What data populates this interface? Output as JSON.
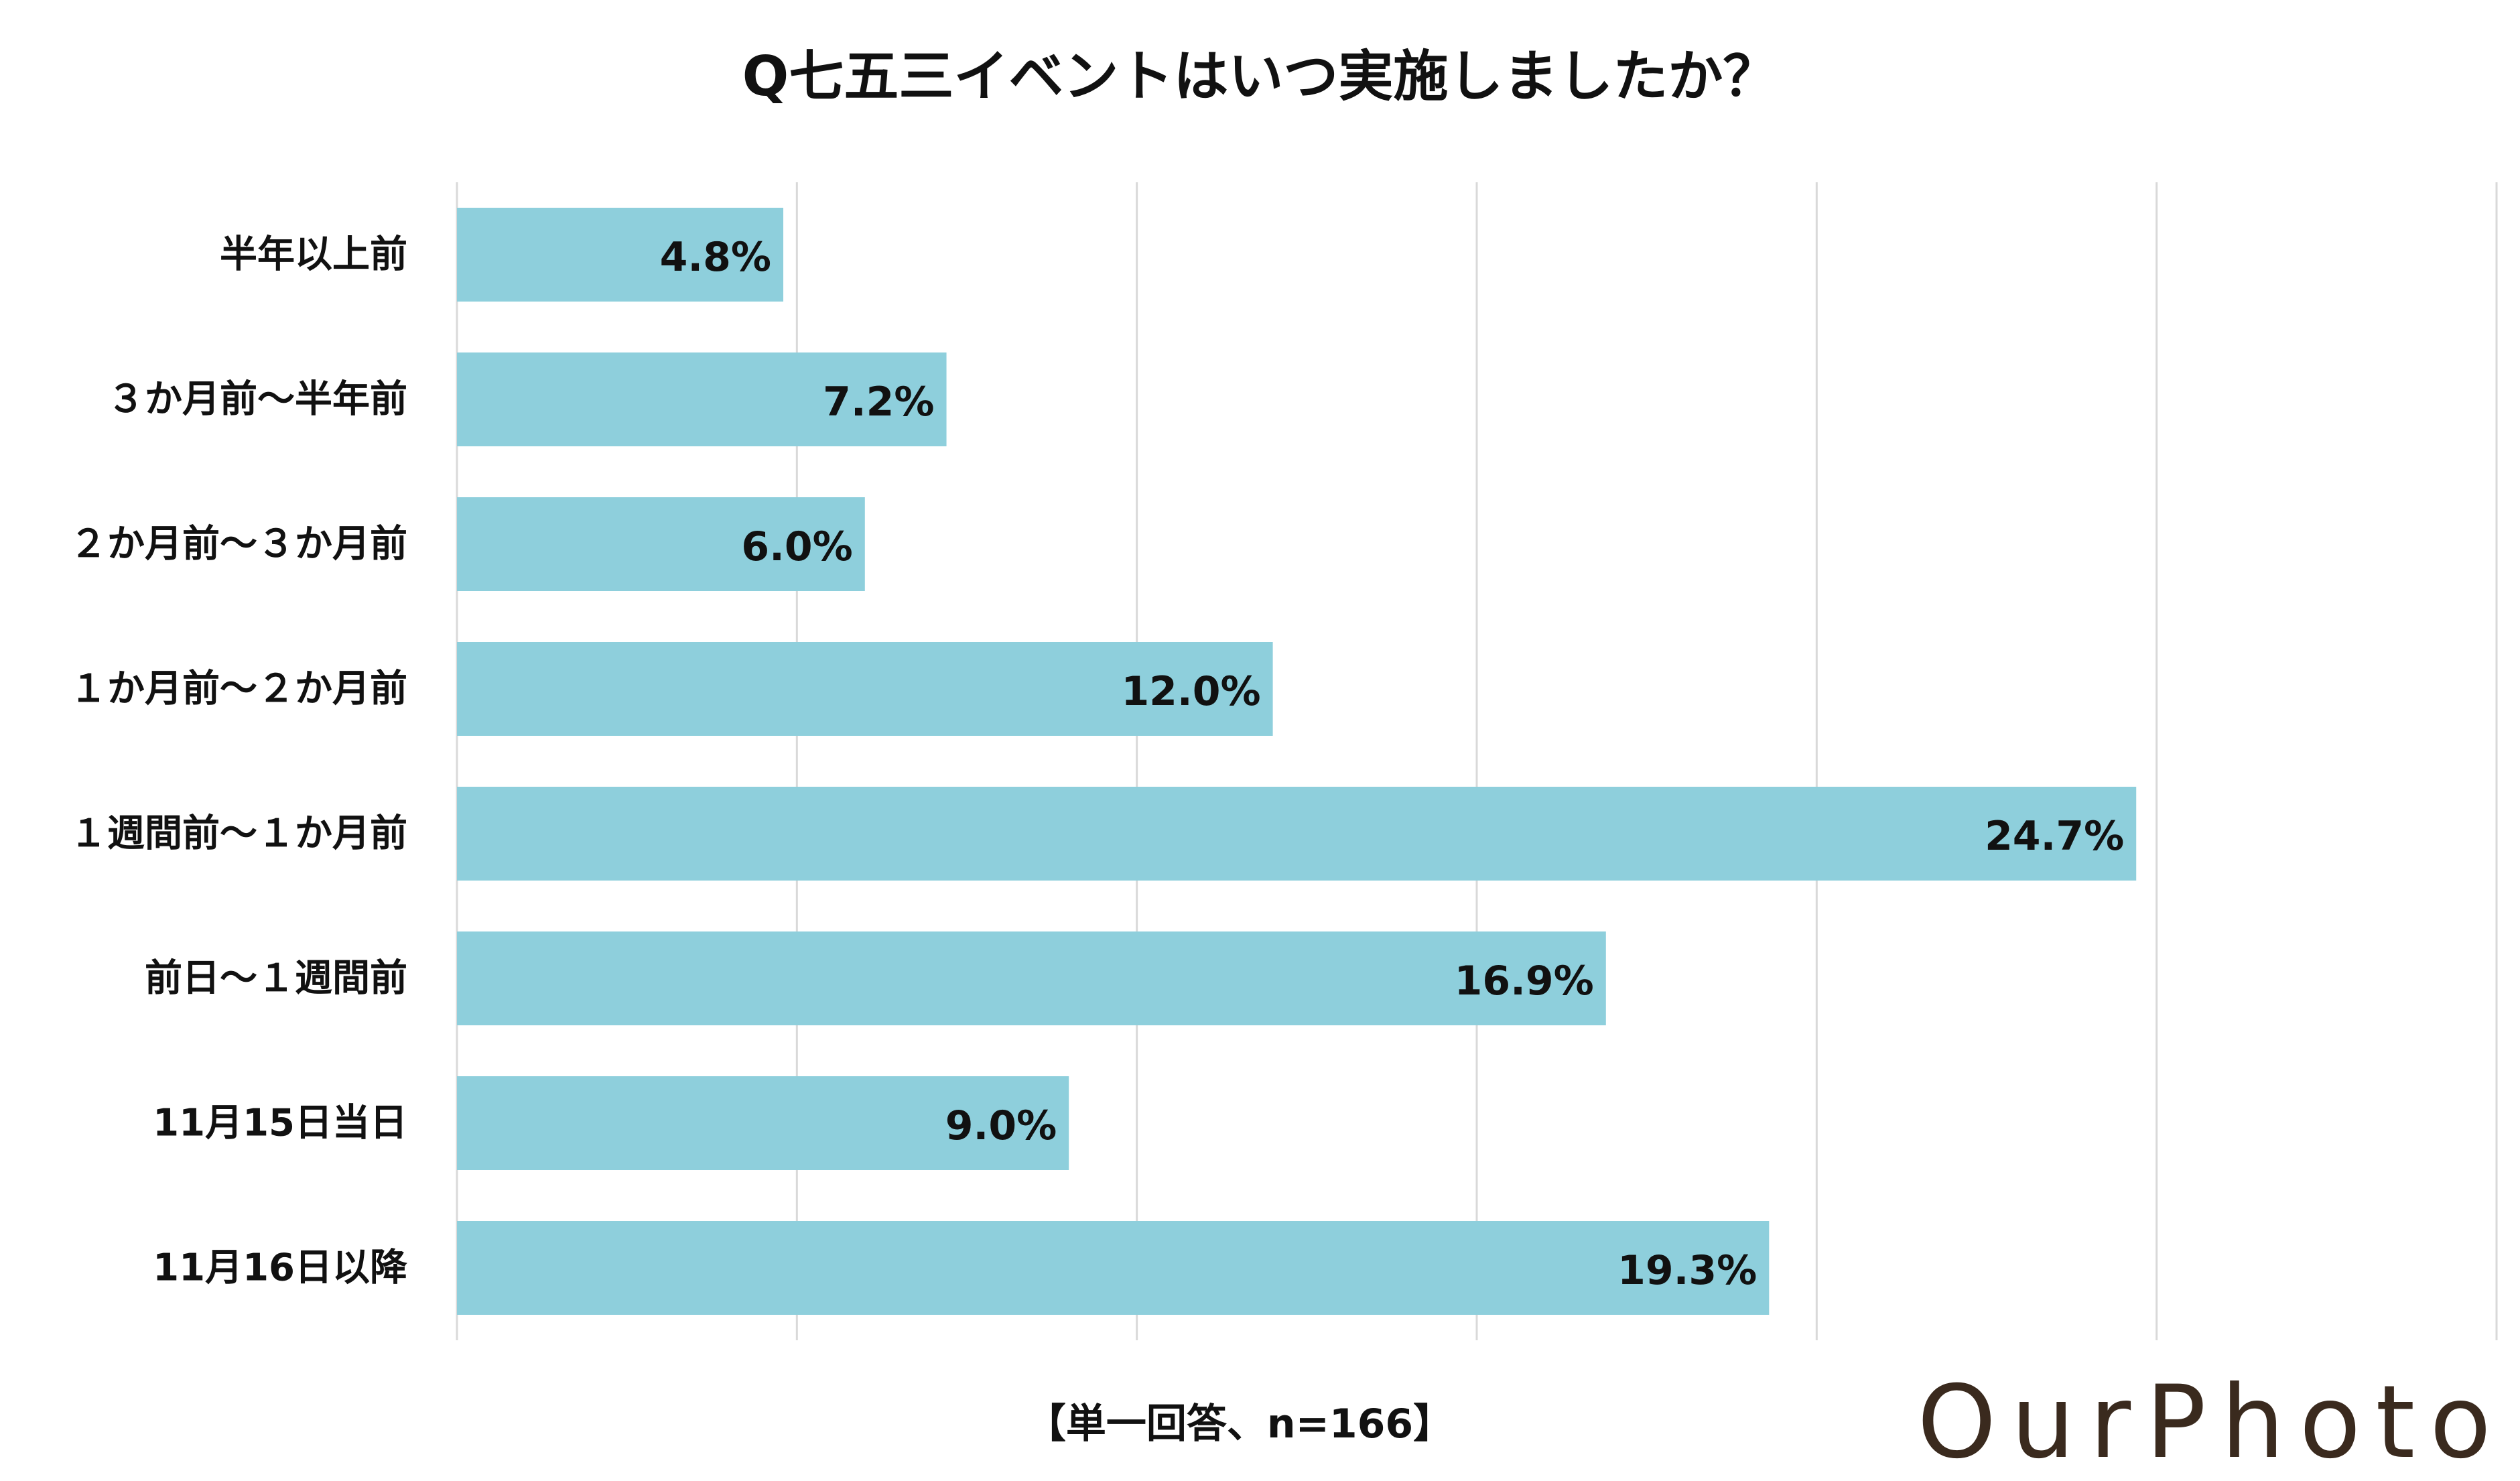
{
  "chart_data": {
    "type": "bar",
    "orientation": "horizontal",
    "title": "Q七五三イベントはいつ実施しましたか？",
    "categories": [
      "半年以上前",
      "３か月前～半年前",
      "２か月前～３か月前",
      "１か月前～２か月前",
      "１週間前～１か月前",
      "前日～１週間前",
      "11月15日当日",
      "11月16日以降"
    ],
    "values": [
      4.8,
      7.2,
      6.0,
      12.0,
      24.7,
      16.9,
      9.0,
      19.3
    ],
    "value_labels": [
      "4.8%",
      "7.2%",
      "6.0%",
      "12.0%",
      "24.7%",
      "16.9%",
      "9.0%",
      "19.3%"
    ],
    "xlim": [
      0,
      30
    ],
    "grid": true,
    "legend": "none",
    "bar_color": "#8ecfdc",
    "note": "【単一回答、n=166】"
  },
  "logo_text": "OurPhoto"
}
